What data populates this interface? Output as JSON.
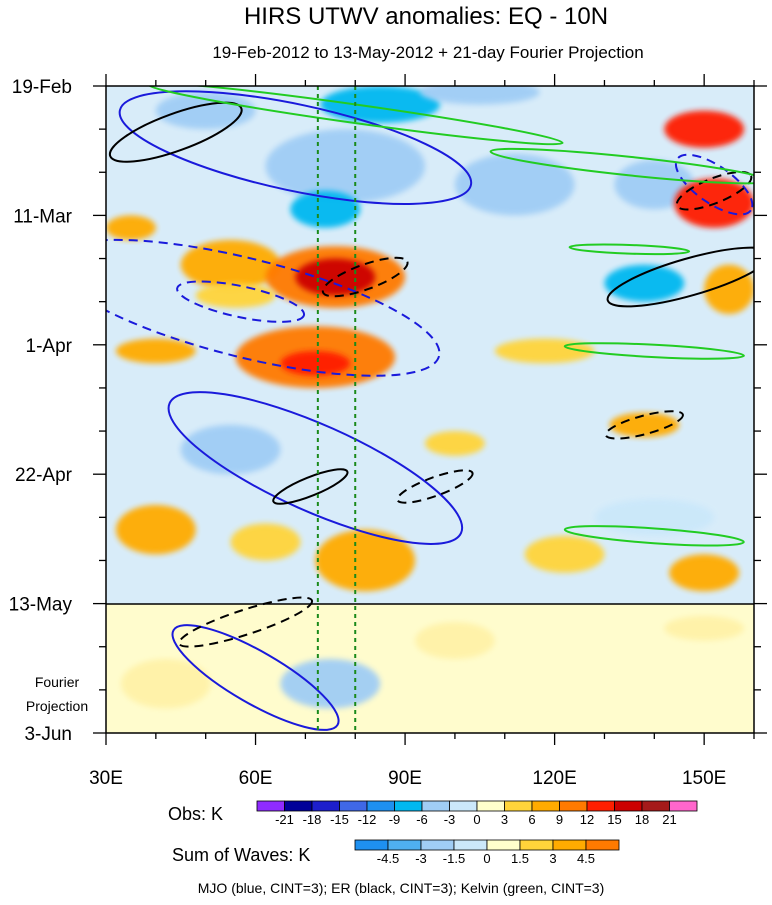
{
  "chart_data": {
    "type": "heatmap",
    "title": "HIRS UTWV anomalies: EQ - 10N",
    "subtitle": "19-Feb-2012 to 13-May-2012 + 21-day Fourier Projection",
    "x_ticks": [
      {
        "value": 30,
        "label": "30E"
      },
      {
        "value": 60,
        "label": "60E"
      },
      {
        "value": 90,
        "label": "90E"
      },
      {
        "value": 120,
        "label": "120E"
      },
      {
        "value": 150,
        "label": "150E"
      }
    ],
    "xlim": [
      30,
      160
    ],
    "y_ticks": [
      {
        "day": 0,
        "label": "19-Feb"
      },
      {
        "day": 21,
        "label": "11-Mar"
      },
      {
        "day": 42,
        "label": "1-Apr"
      },
      {
        "day": 63,
        "label": "22-Apr"
      },
      {
        "day": 84,
        "label": "13-May"
      },
      {
        "day": 105,
        "label": "3-Jun"
      }
    ],
    "ylim_days": [
      0,
      105
    ],
    "projection_start_day": 84,
    "projection_label_line1": "Fourier",
    "projection_label_line2": "Projection",
    "reference_lines_lon": [
      72.5,
      80
    ],
    "obs_legend": {
      "title": "Obs: K",
      "levels": [
        "-21",
        "-18",
        "-15",
        "-12",
        "-9",
        "-6",
        "-3",
        "0",
        "3",
        "6",
        "9",
        "12",
        "15",
        "18",
        "21"
      ],
      "colors": [
        "#8f2bff",
        "#000099",
        "#1d1fcc",
        "#3f68e6",
        "#1e90f0",
        "#00b8f0",
        "#a0cdf5",
        "#cbe8fa",
        "#ffffcc",
        "#ffd43a",
        "#ffab00",
        "#ff7a00",
        "#ff1f00",
        "#cc0000",
        "#a51a1a",
        "#ff66cc"
      ]
    },
    "waves_legend": {
      "title": "Sum of Waves: K",
      "levels": [
        "-4.5",
        "-3",
        "-1.5",
        "0",
        "1.5",
        "3",
        "4.5"
      ],
      "colors": [
        "#1e90f0",
        "#4fb0f0",
        "#a0cdf5",
        "#cbe8fa",
        "#ffffcc",
        "#ffd43a",
        "#ffab00",
        "#ff7a00"
      ]
    },
    "footer": "MJO (blue, CINT=3); ER (black, CINT=3); Kelvin (green, CINT=3)",
    "series": [
      {
        "name": "MJO",
        "color": "#1a1adb"
      },
      {
        "name": "ER",
        "color": "#000000"
      },
      {
        "name": "Kelvin",
        "color": "#22cc22"
      }
    ],
    "anomaly_blobs": [
      {
        "lon": 50,
        "day": 4,
        "rlon": 10,
        "rday": 3,
        "level": "-6"
      },
      {
        "lon": 85,
        "day": 3,
        "rlon": 12,
        "rday": 3,
        "level": "-9"
      },
      {
        "lon": 105,
        "day": 1,
        "rlon": 12,
        "rday": 2,
        "level": "-6"
      },
      {
        "lon": 78,
        "day": 13,
        "rlon": 16,
        "rday": 6,
        "level": "-6"
      },
      {
        "lon": 74,
        "day": 20,
        "rlon": 7,
        "rday": 3,
        "level": "-9"
      },
      {
        "lon": 112,
        "day": 16,
        "rlon": 12,
        "rday": 5,
        "level": "-6"
      },
      {
        "lon": 140,
        "day": 16,
        "rlon": 8,
        "rday": 4,
        "level": "-6"
      },
      {
        "lon": 150,
        "day": 7,
        "rlon": 8,
        "rday": 3,
        "level": "12"
      },
      {
        "lon": 152,
        "day": 19,
        "rlon": 8,
        "rday": 4,
        "level": "12"
      },
      {
        "lon": 35,
        "day": 23,
        "rlon": 5,
        "rday": 2,
        "level": "6"
      },
      {
        "lon": 55,
        "day": 29,
        "rlon": 10,
        "rday": 4,
        "level": "6"
      },
      {
        "lon": 76,
        "day": 31,
        "rlon": 14,
        "rday": 5,
        "level": "9"
      },
      {
        "lon": 76,
        "day": 31,
        "rlon": 8,
        "rday": 3,
        "level": "15"
      },
      {
        "lon": 56,
        "day": 34,
        "rlon": 8,
        "rday": 2,
        "level": "3"
      },
      {
        "lon": 72,
        "day": 44,
        "rlon": 16,
        "rday": 5,
        "level": "9"
      },
      {
        "lon": 72,
        "day": 45,
        "rlon": 7,
        "rday": 2,
        "level": "12"
      },
      {
        "lon": 40,
        "day": 43,
        "rlon": 8,
        "rday": 2,
        "level": "6"
      },
      {
        "lon": 138,
        "day": 32,
        "rlon": 8,
        "rday": 3,
        "level": "-9"
      },
      {
        "lon": 155,
        "day": 33,
        "rlon": 5,
        "rday": 4,
        "level": "6"
      },
      {
        "lon": 118,
        "day": 43,
        "rlon": 10,
        "rday": 2,
        "level": "3"
      },
      {
        "lon": 138,
        "day": 55,
        "rlon": 7,
        "rday": 2,
        "level": "6"
      },
      {
        "lon": 55,
        "day": 59,
        "rlon": 10,
        "rday": 4,
        "level": "-6"
      },
      {
        "lon": 100,
        "day": 58,
        "rlon": 6,
        "rday": 2,
        "level": "3"
      },
      {
        "lon": 40,
        "day": 72,
        "rlon": 8,
        "rday": 4,
        "level": "6"
      },
      {
        "lon": 82,
        "day": 77,
        "rlon": 10,
        "rday": 5,
        "level": "6"
      },
      {
        "lon": 62,
        "day": 74,
        "rlon": 7,
        "rday": 3,
        "level": "3"
      },
      {
        "lon": 140,
        "day": 70,
        "rlon": 12,
        "rday": 3,
        "level": "-3"
      },
      {
        "lon": 122,
        "day": 76,
        "rlon": 8,
        "rday": 3,
        "level": "3"
      },
      {
        "lon": 150,
        "day": 79,
        "rlon": 7,
        "rday": 3,
        "level": "6"
      },
      {
        "lon": 75,
        "day": 97,
        "rlon": 10,
        "rday": 4,
        "level": "-1.5"
      },
      {
        "lon": 42,
        "day": 97,
        "rlon": 9,
        "rday": 4,
        "level": "1.5"
      },
      {
        "lon": 100,
        "day": 90,
        "rlon": 8,
        "rday": 3,
        "level": "1.5"
      },
      {
        "lon": 150,
        "day": 88,
        "rlon": 8,
        "rday": 2,
        "level": "1.5"
      }
    ],
    "wave_contours": [
      {
        "wave": "MJO",
        "dashed": false,
        "cx_lon": 68,
        "cy_day": 10,
        "rlon": 36,
        "rday": 7,
        "angle": 12
      },
      {
        "wave": "MJO",
        "dashed": true,
        "cx_lon": 58,
        "cy_day": 36,
        "rlon": 40,
        "rday": 8,
        "angle": 14
      },
      {
        "wave": "MJO",
        "dashed": true,
        "cx_lon": 57,
        "cy_day": 35,
        "rlon": 13,
        "rday": 2.5,
        "angle": 12
      },
      {
        "wave": "MJO",
        "dashed": false,
        "cx_lon": 72,
        "cy_day": 62,
        "rlon": 32,
        "rday": 7,
        "angle": 24
      },
      {
        "wave": "MJO",
        "dashed": false,
        "cx_lon": 60,
        "cy_day": 96,
        "rlon": 19,
        "rday": 4.2,
        "angle": 30
      },
      {
        "wave": "MJO",
        "dashed": true,
        "cx_lon": 152,
        "cy_day": 16,
        "rlon": 9,
        "rday": 3,
        "angle": 35
      },
      {
        "wave": "ER",
        "dashed": false,
        "cx_lon": 44,
        "cy_day": 7.5,
        "rlon": 14,
        "rday": 3,
        "angle": -20
      },
      {
        "wave": "ER",
        "dashed": true,
        "cx_lon": 82,
        "cy_day": 31,
        "rlon": 9,
        "rday": 2,
        "angle": -20
      },
      {
        "wave": "ER",
        "dashed": false,
        "cx_lon": 71,
        "cy_day": 65,
        "rlon": 8,
        "rday": 1.5,
        "angle": -22
      },
      {
        "wave": "ER",
        "dashed": true,
        "cx_lon": 96,
        "cy_day": 65,
        "rlon": 8,
        "rday": 1.5,
        "angle": -20
      },
      {
        "wave": "ER",
        "dashed": true,
        "cx_lon": 138,
        "cy_day": 55,
        "rlon": 8,
        "rday": 1.5,
        "angle": -15
      },
      {
        "wave": "ER",
        "dashed": true,
        "cx_lon": 152,
        "cy_day": 17,
        "rlon": 8,
        "rday": 2,
        "angle": -22
      },
      {
        "wave": "ER",
        "dashed": true,
        "cx_lon": 58,
        "cy_day": 87,
        "rlon": 14,
        "rday": 2,
        "angle": -18
      },
      {
        "wave": "ER",
        "dashed": false,
        "cx_lon": 147,
        "cy_day": 31,
        "rlon": 17,
        "rday": 3,
        "angle": -16
      },
      {
        "wave": "Kelvin",
        "dashed": false,
        "cx_lon": 80,
        "cy_day": 4.5,
        "rlon": 42,
        "rday": 1.5,
        "angle": 8
      },
      {
        "wave": "Kelvin",
        "dashed": false,
        "cx_lon": 135,
        "cy_day": 13,
        "rlon": 28,
        "rday": 1.5,
        "angle": 6
      },
      {
        "wave": "Kelvin",
        "dashed": false,
        "cx_lon": 140,
        "cy_day": 43,
        "rlon": 18,
        "rday": 1,
        "angle": 3
      },
      {
        "wave": "Kelvin",
        "dashed": false,
        "cx_lon": 140,
        "cy_day": 73,
        "rlon": 18,
        "rday": 1.2,
        "angle": 4
      },
      {
        "wave": "Kelvin",
        "dashed": false,
        "cx_lon": 135,
        "cy_day": 26.5,
        "rlon": 12,
        "rday": 0.7,
        "angle": 2
      }
    ]
  }
}
